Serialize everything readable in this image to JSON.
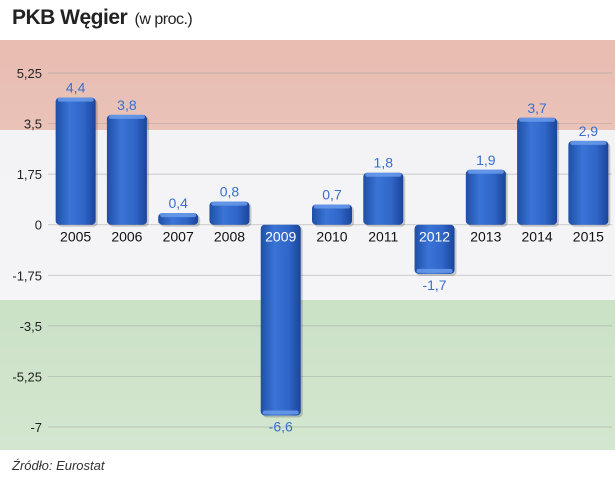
{
  "header": {
    "title_main": "PKB Węgier",
    "title_sub": "(w proc.)"
  },
  "footer": {
    "source": "Źródło: Eurostat"
  },
  "colors": {
    "bar": "#2f66c8",
    "bar_dark": "#1d4aa0",
    "label": "#3a6ed0",
    "band_red": "#e8bdb2",
    "band_white": "#f2f2f5",
    "band_green": "#bcd9b6"
  },
  "chart_data": {
    "type": "bar",
    "title": "PKB Węgier (w proc.)",
    "xlabel": "",
    "ylabel": "",
    "categories": [
      "2005",
      "2006",
      "2007",
      "2008",
      "2009",
      "2010",
      "2011",
      "2012",
      "2013",
      "2014",
      "2015"
    ],
    "values": [
      4.4,
      3.8,
      0.4,
      0.8,
      -6.6,
      0.7,
      1.8,
      -1.7,
      1.9,
      3.7,
      2.9
    ],
    "value_labels": [
      "4,4",
      "3,8",
      "0,4",
      "0,8",
      "-6,6",
      "0,7",
      "1,8",
      "-1,7",
      "1,9",
      "3,7",
      "2,9"
    ],
    "ylim": [
      -7,
      5.25
    ],
    "yticks": [
      5.25,
      3.5,
      1.75,
      0,
      -1.75,
      -3.5,
      -5.25,
      -7
    ],
    "ytick_labels": [
      "5,25",
      "3,5",
      "1,75",
      "0",
      "-1,75",
      "-3,5",
      "-5,25",
      "-7"
    ],
    "grid": true,
    "legend": "none"
  }
}
